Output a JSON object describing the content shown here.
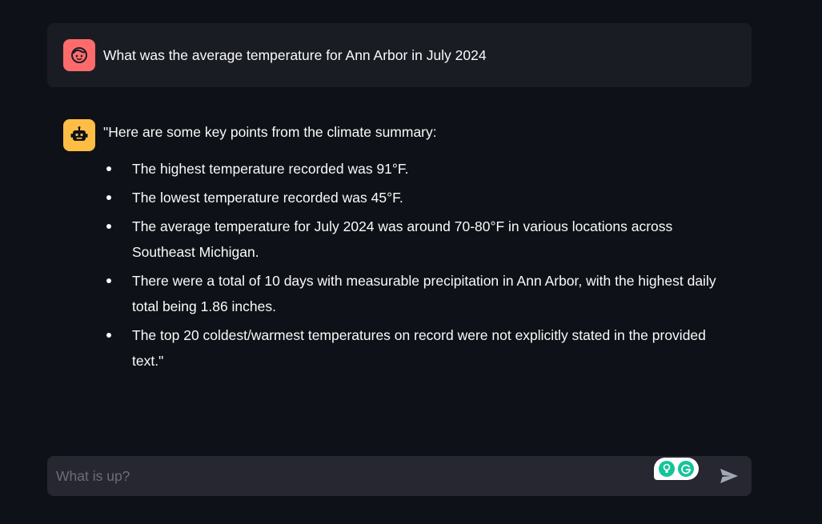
{
  "messages": {
    "user": {
      "avatar_icon": "face-icon",
      "avatar_color": "#ff6b6b",
      "text": "What was the average temperature for Ann Arbor in July 2024"
    },
    "assistant": {
      "avatar_icon": "robot-icon",
      "avatar_color": "#ffbd45",
      "intro": "\"Here are some key points from the climate summary:",
      "points": [
        "The highest temperature recorded was 91°F.",
        "The lowest temperature recorded was 45°F.",
        "The average temperature for July 2024 was around 70-80°F in various locations across Southeast Michigan.",
        "There were a total of 10 days with measurable precipitation in Ann Arbor, with the highest daily total being 1.86 inches.",
        "The top 20 coldest/warmest temperatures on record were not explicitly stated in the provided text.\""
      ]
    }
  },
  "chat_input": {
    "placeholder": "What is up?",
    "value": "",
    "send_icon": "send-arrow-icon",
    "extension_icons": [
      "lightbulb-icon",
      "grammarly-icon"
    ],
    "extension_color": "#15c39a"
  },
  "colors": {
    "background": "#0e1117",
    "user_bubble": "#1a1c24",
    "input_bar": "#262730"
  }
}
